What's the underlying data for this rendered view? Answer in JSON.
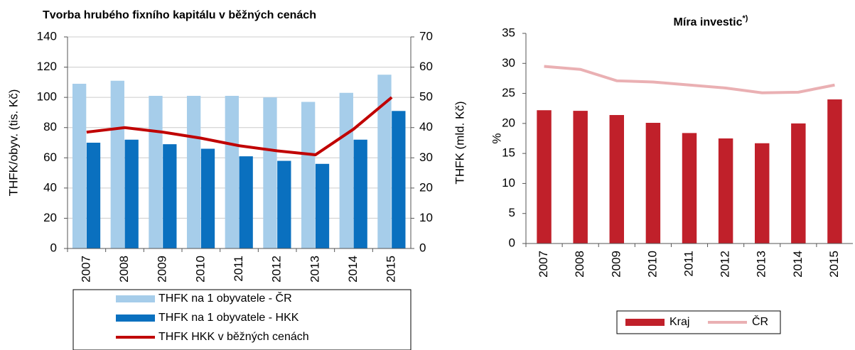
{
  "chart_data": [
    {
      "type": "bar",
      "title": "Tvorba hrubého fixního kapitálu v běžných cenách",
      "ylabel": "THFK/obyv. (tis. Kč)",
      "y2label": "THFK (mld. Kč)",
      "categories": [
        "2007",
        "2008",
        "2009",
        "2010",
        "2011",
        "2012",
        "2013",
        "2014",
        "2015"
      ],
      "series": [
        {
          "name": "THFK na 1 obyvatele - ČR",
          "type": "bar",
          "color": "#a6cdea",
          "values": [
            109,
            111,
            101,
            101,
            101,
            100,
            97,
            103,
            115
          ]
        },
        {
          "name": "THFK na 1 obyvatele - HKK",
          "type": "bar",
          "color": "#0a70bf",
          "values": [
            70,
            72,
            69,
            66,
            61,
            58,
            56,
            72,
            91
          ]
        },
        {
          "name": "THFK HKK v běžných cenách",
          "type": "line",
          "axis": "y2",
          "color": "#c00000",
          "values": [
            38.5,
            40,
            38.5,
            36.5,
            34,
            32.3,
            31,
            39.5,
            50
          ]
        }
      ],
      "ylim": [
        0,
        140
      ],
      "yticks": [
        0,
        20,
        40,
        60,
        80,
        100,
        120,
        140
      ],
      "y2lim": [
        0,
        70
      ],
      "y2ticks": [
        0,
        10,
        20,
        30,
        40,
        50,
        60,
        70
      ],
      "grid": true
    },
    {
      "type": "bar",
      "title": "Míra investic",
      "title_note": "*)",
      "ylabel": "%",
      "categories": [
        "2007",
        "2008",
        "2009",
        "2010",
        "2011",
        "2012",
        "2013",
        "2014",
        "2015"
      ],
      "series": [
        {
          "name": "Kraj",
          "type": "bar",
          "color": "#c0202a",
          "values": [
            22.2,
            22.1,
            21.4,
            20.1,
            18.4,
            17.5,
            16.7,
            20,
            24
          ]
        },
        {
          "name": "ČR",
          "type": "line",
          "color": "#eab0b3",
          "values": [
            29.5,
            29,
            27.1,
            26.9,
            26.4,
            25.9,
            25.1,
            25.2,
            26.4
          ]
        }
      ],
      "ylim": [
        0,
        35
      ],
      "yticks": [
        0,
        5,
        10,
        15,
        20,
        25,
        30,
        35
      ],
      "grid": false
    }
  ]
}
